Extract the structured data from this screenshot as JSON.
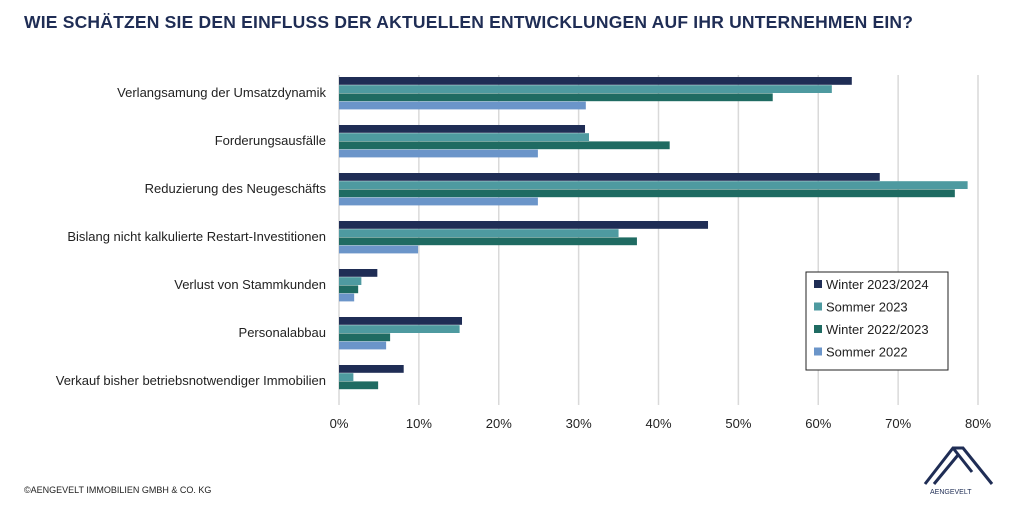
{
  "title": "WIE SCHÄTZEN SIE DEN EINFLUSS DER AKTUELLEN ENTWICKLUNGEN AUF IHR UNTERNEHMEN EIN?",
  "copyright": "©AENGEVELT IMMOBILIEN GMBH & CO. KG",
  "logo_text": "AENGEVELT",
  "chart_data": {
    "type": "bar",
    "orientation": "horizontal",
    "title": "WIE SCHÄTZEN SIE DEN EINFLUSS DER AKTUELLEN ENTWICKLUNGEN AUF IHR UNTERNEHMEN EIN?",
    "categories": [
      "Verlangsamung der Umsatzdynamik",
      "Forderungsausfälle",
      "Reduzierung des Neugeschäfts",
      "Bislang nicht kalkulierte Restart-Investitionen",
      "Verlust von Stammkunden",
      "Personalabbau",
      "Verkauf bisher betriebsnotwendiger Immobilien"
    ],
    "series": [
      {
        "name": "Winter 2023/2024",
        "color": "#1f2d55",
        "values": [
          64.2,
          30.8,
          67.7,
          46.2,
          4.8,
          15.4,
          8.1
        ]
      },
      {
        "name": "Sommer 2023",
        "color": "#4e9aa0",
        "values": [
          61.7,
          31.3,
          78.7,
          35.0,
          2.8,
          15.1,
          1.8
        ]
      },
      {
        "name": "Winter 2022/2023",
        "color": "#1f6b62",
        "values": [
          54.3,
          41.4,
          77.1,
          37.3,
          2.4,
          6.4,
          4.9
        ]
      },
      {
        "name": "Sommer 2022",
        "color": "#6b95c9",
        "values": [
          30.9,
          24.9,
          24.9,
          9.9,
          1.9,
          5.9,
          0
        ]
      }
    ],
    "xlim": [
      0,
      80
    ],
    "xticks": [
      "0%",
      "10%",
      "20%",
      "30%",
      "40%",
      "50%",
      "60%",
      "70%",
      "80%"
    ],
    "grid": true,
    "legend": "right"
  }
}
